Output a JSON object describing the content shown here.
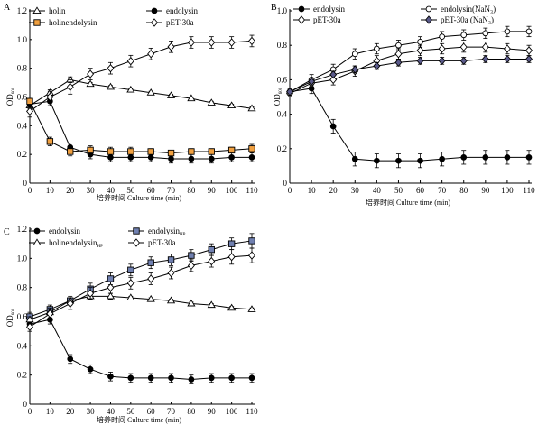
{
  "chart_data": [
    {
      "panel": "A",
      "type": "line",
      "xlabel": "培养时间 Culture time (min)",
      "ylabel": "OD",
      "ylabel_sub": "600",
      "xlim": [
        0,
        110
      ],
      "ylim": [
        0,
        1.2
      ],
      "xticks": [
        0,
        10,
        20,
        30,
        40,
        50,
        60,
        70,
        80,
        90,
        100,
        110
      ],
      "yticks": [
        0,
        0.2,
        0.4,
        0.6,
        0.8,
        1.0,
        1.2
      ],
      "ytick_labels": [
        "0",
        "0.2",
        "0.4",
        "0.6",
        "0.8",
        "1.0",
        "1.2"
      ],
      "legend_columns": 2,
      "series": [
        {
          "name": "holin",
          "marker": "triangle",
          "fill": "#ffffff",
          "x": [
            0,
            10,
            20,
            30,
            40,
            50,
            60,
            70,
            80,
            90,
            100,
            110
          ],
          "y": [
            0.54,
            0.63,
            0.72,
            0.69,
            0.67,
            0.65,
            0.63,
            0.61,
            0.59,
            0.56,
            0.54,
            0.52
          ],
          "err": [
            0.02,
            0.02,
            0.02,
            0.01,
            0.01,
            0.01,
            0.01,
            0.01,
            0.01,
            0.01,
            0.01,
            0.01
          ]
        },
        {
          "name": "endolysin",
          "marker": "circle",
          "fill": "#000000",
          "x": [
            0,
            10,
            20,
            30,
            40,
            50,
            60,
            70,
            80,
            90,
            100,
            110
          ],
          "y": [
            0.55,
            0.57,
            0.25,
            0.2,
            0.18,
            0.18,
            0.18,
            0.17,
            0.17,
            0.17,
            0.18,
            0.18
          ],
          "err": [
            0.02,
            0.03,
            0.03,
            0.03,
            0.03,
            0.03,
            0.03,
            0.03,
            0.03,
            0.03,
            0.03,
            0.03
          ]
        },
        {
          "name": "holinendolysin",
          "marker": "square",
          "fill": "#f0a040",
          "x": [
            0,
            10,
            20,
            30,
            40,
            50,
            60,
            70,
            80,
            90,
            100,
            110
          ],
          "y": [
            0.57,
            0.29,
            0.22,
            0.23,
            0.22,
            0.22,
            0.22,
            0.21,
            0.22,
            0.22,
            0.23,
            0.24
          ],
          "err": [
            0.02,
            0.03,
            0.03,
            0.03,
            0.03,
            0.03,
            0.02,
            0.02,
            0.02,
            0.02,
            0.02,
            0.03
          ]
        },
        {
          "name": "pET-30a",
          "marker": "diamond",
          "fill": "#ffffff",
          "x": [
            0,
            10,
            20,
            30,
            40,
            50,
            60,
            70,
            80,
            90,
            100,
            110
          ],
          "y": [
            0.5,
            0.6,
            0.67,
            0.76,
            0.8,
            0.85,
            0.9,
            0.95,
            0.98,
            0.98,
            0.98,
            0.99
          ],
          "err": [
            0.04,
            0.04,
            0.05,
            0.04,
            0.04,
            0.04,
            0.04,
            0.04,
            0.04,
            0.04,
            0.04,
            0.04
          ]
        }
      ]
    },
    {
      "panel": "B",
      "type": "line",
      "xlabel": "培养时间 Culture time (min)",
      "ylabel": "OD",
      "ylabel_sub": "600",
      "xlim": [
        0,
        110
      ],
      "ylim": [
        0,
        1.0
      ],
      "xticks": [
        0,
        10,
        20,
        30,
        40,
        50,
        60,
        70,
        80,
        90,
        100,
        110
      ],
      "yticks": [
        0,
        0.2,
        0.4,
        0.6,
        0.8,
        1.0
      ],
      "ytick_labels": [
        "0",
        "0.2",
        "0.4",
        "0.6",
        "0.8",
        "1.0"
      ],
      "legend_columns": 2,
      "series": [
        {
          "name": "endolysin",
          "marker": "circle",
          "fill": "#000000",
          "x": [
            0,
            10,
            20,
            30,
            40,
            50,
            60,
            70,
            80,
            90,
            100,
            110
          ],
          "y": [
            0.53,
            0.55,
            0.33,
            0.14,
            0.13,
            0.13,
            0.13,
            0.14,
            0.15,
            0.15,
            0.15,
            0.15
          ],
          "err": [
            0.02,
            0.03,
            0.04,
            0.04,
            0.04,
            0.04,
            0.04,
            0.04,
            0.04,
            0.04,
            0.04,
            0.04
          ]
        },
        {
          "name": "endolysin(NaN₃)",
          "marker": "circle",
          "fill": "#ffffff",
          "x": [
            0,
            10,
            20,
            30,
            40,
            50,
            60,
            70,
            80,
            90,
            100,
            110
          ],
          "y": [
            0.53,
            0.6,
            0.66,
            0.75,
            0.78,
            0.8,
            0.82,
            0.85,
            0.86,
            0.87,
            0.88,
            0.88
          ],
          "err": [
            0.02,
            0.03,
            0.03,
            0.03,
            0.03,
            0.03,
            0.03,
            0.03,
            0.03,
            0.03,
            0.03,
            0.03
          ]
        },
        {
          "name": "pET-30a",
          "marker": "diamond",
          "fill": "#ffffff",
          "x": [
            0,
            10,
            20,
            30,
            40,
            50,
            60,
            70,
            80,
            90,
            100,
            110
          ],
          "y": [
            0.52,
            0.58,
            0.6,
            0.65,
            0.71,
            0.75,
            0.77,
            0.78,
            0.79,
            0.79,
            0.78,
            0.77
          ],
          "err": [
            0.02,
            0.03,
            0.03,
            0.03,
            0.03,
            0.03,
            0.03,
            0.03,
            0.03,
            0.03,
            0.03,
            0.03
          ]
        },
        {
          "name": "pET-30a (NaN₃)",
          "marker": "diamond",
          "fill": "#5a5a8a",
          "x": [
            0,
            10,
            20,
            30,
            40,
            50,
            60,
            70,
            80,
            90,
            100,
            110
          ],
          "y": [
            0.53,
            0.59,
            0.63,
            0.66,
            0.68,
            0.7,
            0.71,
            0.71,
            0.71,
            0.72,
            0.72,
            0.72
          ],
          "err": [
            0.02,
            0.02,
            0.02,
            0.02,
            0.02,
            0.02,
            0.02,
            0.02,
            0.02,
            0.02,
            0.02,
            0.02
          ]
        }
      ]
    },
    {
      "panel": "C",
      "type": "line",
      "xlabel": "培养时间 Culture time (min)",
      "ylabel": "OD",
      "ylabel_sub": "600",
      "xlim": [
        0,
        110
      ],
      "ylim": [
        0,
        1.2
      ],
      "xticks": [
        0,
        10,
        20,
        30,
        40,
        50,
        60,
        70,
        80,
        90,
        100,
        110
      ],
      "yticks": [
        0,
        0.2,
        0.4,
        0.6,
        0.8,
        1.0,
        1.2
      ],
      "ytick_labels": [
        "0",
        "0.2",
        "0.4",
        "0.6",
        "0.8",
        "1.0",
        "1.2"
      ],
      "legend_columns": 2,
      "series": [
        {
          "name": "endolysin",
          "marker": "circle",
          "fill": "#000000",
          "x": [
            0,
            10,
            20,
            30,
            40,
            50,
            60,
            70,
            80,
            90,
            100,
            110
          ],
          "y": [
            0.55,
            0.58,
            0.31,
            0.24,
            0.19,
            0.18,
            0.18,
            0.18,
            0.17,
            0.18,
            0.18,
            0.18
          ],
          "err": [
            0.02,
            0.03,
            0.03,
            0.03,
            0.03,
            0.03,
            0.03,
            0.03,
            0.03,
            0.03,
            0.03,
            0.03
          ]
        },
        {
          "name": "endolysin",
          "name_sub": "HP",
          "marker": "square",
          "fill": "#7080b0",
          "x": [
            0,
            10,
            20,
            30,
            40,
            50,
            60,
            70,
            80,
            90,
            100,
            110
          ],
          "y": [
            0.6,
            0.65,
            0.71,
            0.79,
            0.86,
            0.92,
            0.97,
            0.99,
            1.02,
            1.06,
            1.1,
            1.12
          ],
          "err": [
            0.03,
            0.03,
            0.03,
            0.04,
            0.04,
            0.04,
            0.04,
            0.04,
            0.04,
            0.04,
            0.04,
            0.05
          ]
        },
        {
          "name": "holinendolysin",
          "name_sub": "HP",
          "marker": "triangle",
          "fill": "#ffffff",
          "x": [
            0,
            10,
            20,
            30,
            40,
            50,
            60,
            70,
            80,
            90,
            100,
            110
          ],
          "y": [
            0.58,
            0.63,
            0.71,
            0.74,
            0.74,
            0.73,
            0.72,
            0.71,
            0.69,
            0.68,
            0.66,
            0.65
          ],
          "err": [
            0.02,
            0.02,
            0.02,
            0.02,
            0.02,
            0.01,
            0.01,
            0.01,
            0.01,
            0.01,
            0.01,
            0.01
          ]
        },
        {
          "name": "pET-30a",
          "marker": "diamond",
          "fill": "#ffffff",
          "x": [
            0,
            10,
            20,
            30,
            40,
            50,
            60,
            70,
            80,
            90,
            100,
            110
          ],
          "y": [
            0.53,
            0.62,
            0.69,
            0.76,
            0.8,
            0.83,
            0.86,
            0.9,
            0.95,
            0.98,
            1.01,
            1.02
          ],
          "err": [
            0.03,
            0.04,
            0.04,
            0.04,
            0.04,
            0.04,
            0.04,
            0.04,
            0.04,
            0.04,
            0.05,
            0.05
          ]
        }
      ]
    }
  ]
}
